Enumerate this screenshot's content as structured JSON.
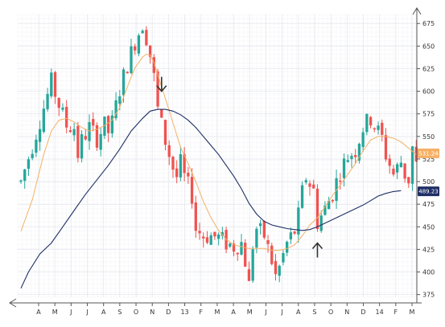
{
  "chart_data": {
    "type": "candlestick",
    "title": "",
    "xlabel": "",
    "ylabel": "",
    "ylim": [
      372,
      685
    ],
    "y_ticks": [
      375,
      400,
      425,
      450,
      475,
      500,
      525,
      550,
      575,
      600,
      625,
      650,
      675
    ],
    "x_tick_labels": [
      "A",
      "M",
      "J",
      "J",
      "A",
      "S",
      "O",
      "N",
      "D",
      "13",
      "F",
      "M",
      "A",
      "M",
      "J",
      "J",
      "A",
      "S",
      "O",
      "N",
      "D",
      "14",
      "F",
      "M"
    ],
    "grid": true,
    "price_axis_side": "right",
    "colors": {
      "up": "#26a69a",
      "down": "#ef5350",
      "ma_short": "#f5b066",
      "ma_long": "#1f2f66",
      "grid": "#e6e8ee",
      "grid_minor": "#f1f2f6",
      "axis": "#555555"
    },
    "price_path": [
      [
        0,
        500
      ],
      [
        3,
        540
      ],
      [
        6,
        582
      ],
      [
        8,
        610
      ],
      [
        10,
        585
      ],
      [
        12,
        562
      ],
      [
        14,
        560
      ],
      [
        15,
        530
      ],
      [
        16,
        545
      ],
      [
        18,
        560
      ],
      [
        20,
        548
      ],
      [
        22,
        562
      ],
      [
        23,
        555
      ],
      [
        24,
        565
      ],
      [
        26,
        602
      ],
      [
        28,
        630
      ],
      [
        30,
        655
      ],
      [
        32,
        675
      ],
      [
        33,
        660
      ],
      [
        34,
        640
      ],
      [
        35,
        615
      ],
      [
        36,
        580
      ],
      [
        38,
        545
      ],
      [
        40,
        515
      ],
      [
        41,
        505
      ],
      [
        42,
        520
      ],
      [
        43,
        505
      ],
      [
        44,
        495
      ],
      [
        45,
        485
      ],
      [
        46,
        448
      ],
      [
        48,
        440
      ],
      [
        50,
        440
      ],
      [
        52,
        438
      ],
      [
        54,
        432
      ],
      [
        56,
        428
      ],
      [
        58,
        432
      ],
      [
        59,
        412
      ],
      [
        60,
        385
      ],
      [
        61,
        430
      ],
      [
        62,
        448
      ],
      [
        64,
        440
      ],
      [
        66,
        412
      ],
      [
        67,
        395
      ],
      [
        68,
        405
      ],
      [
        70,
        432
      ],
      [
        72,
        445
      ],
      [
        73,
        462
      ],
      [
        74,
        488
      ],
      [
        75,
        505
      ],
      [
        77,
        490
      ],
      [
        78,
        455
      ],
      [
        79,
        462
      ],
      [
        80,
        470
      ],
      [
        82,
        488
      ],
      [
        84,
        512
      ],
      [
        86,
        528
      ],
      [
        88,
        535
      ],
      [
        90,
        560
      ],
      [
        92,
        570
      ],
      [
        94,
        555
      ],
      [
        95,
        548
      ],
      [
        96,
        530
      ],
      [
        98,
        508
      ],
      [
        100,
        522
      ],
      [
        101,
        508
      ],
      [
        102,
        502
      ],
      [
        103,
        538
      ],
      [
        104,
        518
      ]
    ],
    "ma_short": [
      [
        0,
        445
      ],
      [
        3,
        480
      ],
      [
        6,
        530
      ],
      [
        8,
        556
      ],
      [
        10,
        568
      ],
      [
        12,
        570
      ],
      [
        14,
        566
      ],
      [
        16,
        560
      ],
      [
        18,
        556
      ],
      [
        20,
        558
      ],
      [
        22,
        562
      ],
      [
        24,
        568
      ],
      [
        26,
        582
      ],
      [
        28,
        605
      ],
      [
        30,
        626
      ],
      [
        32,
        638
      ],
      [
        33,
        641
      ],
      [
        34,
        640
      ],
      [
        35,
        632
      ],
      [
        36,
        618
      ],
      [
        38,
        592
      ],
      [
        40,
        565
      ],
      [
        42,
        538
      ],
      [
        44,
        520
      ],
      [
        46,
        500
      ],
      [
        48,
        478
      ],
      [
        50,
        460
      ],
      [
        52,
        446
      ],
      [
        54,
        436
      ],
      [
        56,
        430
      ],
      [
        58,
        428
      ],
      [
        60,
        426
      ],
      [
        62,
        426
      ],
      [
        64,
        426
      ],
      [
        66,
        424
      ],
      [
        68,
        424
      ],
      [
        70,
        426
      ],
      [
        72,
        430
      ],
      [
        74,
        440
      ],
      [
        76,
        452
      ],
      [
        78,
        460
      ],
      [
        80,
        472
      ],
      [
        82,
        485
      ],
      [
        84,
        496
      ],
      [
        86,
        508
      ],
      [
        88,
        520
      ],
      [
        90,
        534
      ],
      [
        92,
        546
      ],
      [
        94,
        550
      ],
      [
        96,
        550
      ],
      [
        98,
        548
      ],
      [
        100,
        544
      ],
      [
        102,
        537
      ],
      [
        104,
        530
      ]
    ],
    "ma_long": [
      [
        0,
        382
      ],
      [
        2,
        400
      ],
      [
        5,
        420
      ],
      [
        8,
        432
      ],
      [
        11,
        450
      ],
      [
        14,
        468
      ],
      [
        17,
        486
      ],
      [
        20,
        502
      ],
      [
        23,
        518
      ],
      [
        26,
        536
      ],
      [
        29,
        556
      ],
      [
        32,
        570
      ],
      [
        34,
        578
      ],
      [
        36,
        580
      ],
      [
        38,
        580
      ],
      [
        40,
        578
      ],
      [
        42,
        574
      ],
      [
        44,
        568
      ],
      [
        46,
        560
      ],
      [
        48,
        550
      ],
      [
        50,
        540
      ],
      [
        52,
        530
      ],
      [
        54,
        518
      ],
      [
        56,
        506
      ],
      [
        58,
        492
      ],
      [
        60,
        476
      ],
      [
        62,
        464
      ],
      [
        64,
        456
      ],
      [
        66,
        452
      ],
      [
        68,
        450
      ],
      [
        70,
        448
      ],
      [
        72,
        447
      ],
      [
        74,
        446
      ],
      [
        76,
        447
      ],
      [
        78,
        450
      ],
      [
        80,
        454
      ],
      [
        82,
        458
      ],
      [
        84,
        462
      ],
      [
        86,
        466
      ],
      [
        88,
        470
      ],
      [
        90,
        474
      ],
      [
        92,
        479
      ],
      [
        94,
        484
      ],
      [
        96,
        487
      ],
      [
        98,
        489
      ],
      [
        100,
        490
      ]
    ],
    "annotations": [
      {
        "type": "arrow-down",
        "x": 37,
        "value": 600
      },
      {
        "type": "arrow-up",
        "x": 78,
        "value": 432
      }
    ],
    "last_value_labels": [
      {
        "text": "531.24",
        "value": 531.24,
        "series": "ma_short",
        "color": "#f5b066"
      },
      {
        "text": "489.23",
        "value": 489.23,
        "series": "ma_long",
        "color": "#1f2f66"
      }
    ]
  }
}
